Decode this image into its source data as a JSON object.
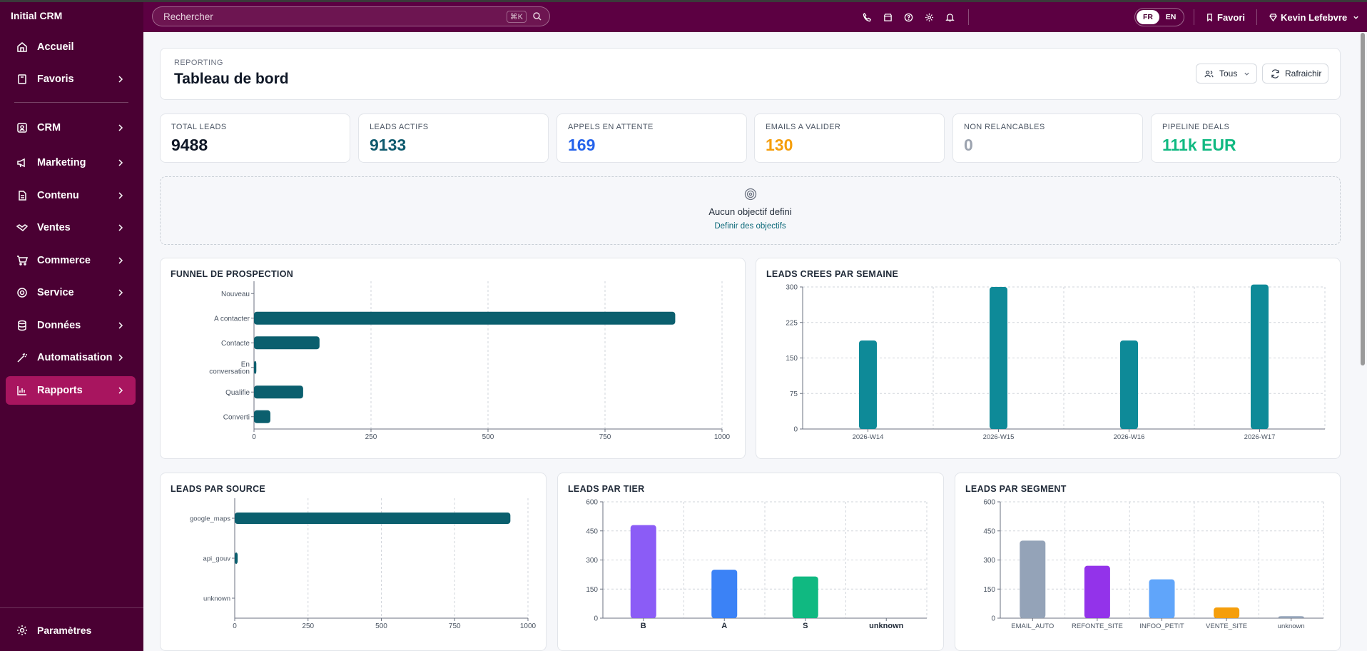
{
  "app": {
    "brand": "Initial CRM"
  },
  "sidebar": {
    "items": [
      {
        "label": "Accueil",
        "icon": "home-icon"
      },
      {
        "label": "Favoris",
        "icon": "bookmark-icon"
      },
      {
        "label": "CRM",
        "icon": "contact-icon"
      },
      {
        "label": "Marketing",
        "icon": "megaphone-icon"
      },
      {
        "label": "Contenu",
        "icon": "document-icon"
      },
      {
        "label": "Ventes",
        "icon": "handshake-icon"
      },
      {
        "label": "Commerce",
        "icon": "cart-icon"
      },
      {
        "label": "Service",
        "icon": "lifebuoy-icon"
      },
      {
        "label": "Données",
        "icon": "database-icon"
      },
      {
        "label": "Automatisation",
        "icon": "wand-icon"
      },
      {
        "label": "Rapports",
        "icon": "bar-chart-icon",
        "active": true
      }
    ],
    "settings_label": "Paramètres"
  },
  "header": {
    "search_placeholder": "Rechercher",
    "search_shortcut": "⌘K",
    "lang_fr": "FR",
    "lang_en": "EN",
    "favori_label": "Favori",
    "user_name": "Kevin Lefebvre"
  },
  "page": {
    "overline": "REPORTING",
    "title": "Tableau de bord",
    "filter_label": "Tous",
    "refresh_label": "Rafraichir"
  },
  "kpis": [
    {
      "label": "TOTAL LEADS",
      "value": "9488",
      "color": "#0f1726"
    },
    {
      "label": "LEADS ACTIFS",
      "value": "9133",
      "color": "#0e5a6e"
    },
    {
      "label": "APPELS EN ATTENTE",
      "value": "169",
      "color": "#2563eb"
    },
    {
      "label": "EMAILS A VALIDER",
      "value": "130",
      "color": "#f59e0b"
    },
    {
      "label": "NON RELANCABLES",
      "value": "0",
      "color": "#9ca3af"
    },
    {
      "label": "PIPELINE DEALS",
      "value": "111k EUR",
      "color": "#10b981"
    }
  ],
  "goal": {
    "text": "Aucun objectif defini",
    "link": "Definir des objectifs"
  },
  "chart_data": [
    {
      "type": "bar",
      "orientation": "horizontal",
      "title": "FUNNEL DE PROSPECTION",
      "categories": [
        "Nouveau",
        "A contacter",
        "Contacte",
        "En conversation",
        "Qualifie",
        "Converti"
      ],
      "values": [
        0,
        900,
        140,
        5,
        105,
        35
      ],
      "xlim": [
        0,
        1000
      ],
      "ticks": [
        0,
        250,
        500,
        750,
        1000
      ],
      "color": "#0b5f6e",
      "grid": true
    },
    {
      "type": "bar",
      "title": "LEADS CREES PAR SEMAINE",
      "categories": [
        "2026-W14",
        "2026-W15",
        "2026-W16",
        "2026-W17"
      ],
      "values": [
        187,
        300,
        187,
        305
      ],
      "ylim": [
        0,
        300
      ],
      "ticks": [
        0,
        75,
        150,
        225,
        300
      ],
      "color": "#0e8a98",
      "grid": true
    },
    {
      "type": "bar",
      "orientation": "horizontal",
      "title": "LEADS PAR SOURCE",
      "categories": [
        "google_maps",
        "api_gouv",
        "unknown"
      ],
      "values": [
        940,
        10,
        0
      ],
      "xlim": [
        0,
        1000
      ],
      "ticks": [
        0,
        250,
        500,
        750,
        1000
      ],
      "color": "#0b5f6e",
      "grid": true
    },
    {
      "type": "bar",
      "title": "LEADS PAR TIER",
      "categories": [
        "B",
        "A",
        "S",
        "unknown"
      ],
      "values": [
        480,
        250,
        215,
        0
      ],
      "colors": [
        "#8b5cf6",
        "#3b82f6",
        "#10b981",
        "#9ca3af"
      ],
      "ylim": [
        0,
        600
      ],
      "ticks": [
        0,
        150,
        300,
        450,
        600
      ],
      "grid": true
    },
    {
      "type": "bar",
      "title": "LEADS PAR SEGMENT",
      "categories": [
        "EMAIL_AUTO",
        "REFONTE_SITE",
        "INFOO_PETIT",
        "VENTE_SITE",
        "unknown"
      ],
      "values": [
        400,
        270,
        200,
        55,
        10
      ],
      "colors": [
        "#94a3b8",
        "#9333ea",
        "#60a5fa",
        "#f59e0b",
        "#94a3b8"
      ],
      "ylim": [
        0,
        600
      ],
      "ticks": [
        0,
        150,
        300,
        450,
        600
      ],
      "grid": true
    }
  ]
}
